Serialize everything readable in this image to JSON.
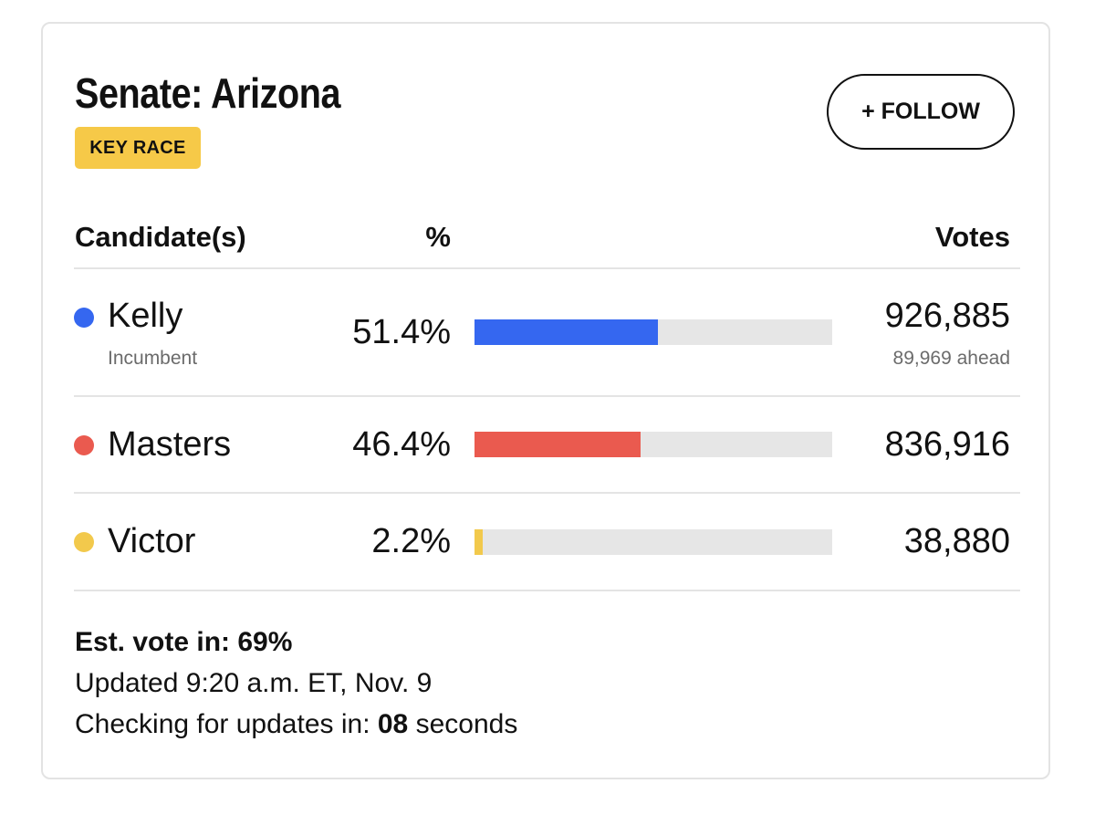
{
  "race": {
    "title": "Senate: Arizona",
    "badge": "KEY RACE",
    "follow_label": "+ FOLLOW"
  },
  "table": {
    "headers": {
      "candidate": "Candidate(s)",
      "percent": "%",
      "votes": "Votes"
    },
    "candidates": [
      {
        "name": "Kelly",
        "subtitle": "Incumbent",
        "percent_label": "51.4%",
        "percent": 51.4,
        "votes": "926,885",
        "lead": "89,969 ahead",
        "color": "#3567f0"
      },
      {
        "name": "Masters",
        "percent_label": "46.4%",
        "percent": 46.4,
        "votes": "836,916",
        "color": "#ea5a4f"
      },
      {
        "name": "Victor",
        "percent_label": "2.2%",
        "percent": 2.2,
        "votes": "38,880",
        "color": "#f2c94c"
      }
    ]
  },
  "footer": {
    "est_label": "Est. vote in:",
    "est_value": "69%",
    "updated": "Updated 9:20 a.m. ET, Nov. 9",
    "checking_label": "Checking for updates in:",
    "checking_value": "08",
    "checking_unit": "seconds"
  }
}
